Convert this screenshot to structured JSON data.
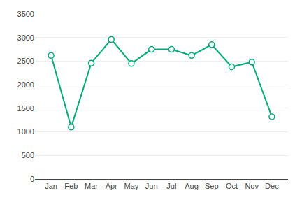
{
  "chart_data": {
    "type": "line",
    "categories": [
      "Jan",
      "Feb",
      "Mar",
      "Apr",
      "May",
      "Jun",
      "Jul",
      "Aug",
      "Sep",
      "Oct",
      "Nov",
      "Dec"
    ],
    "values": [
      2620,
      1100,
      2460,
      2960,
      2450,
      2750,
      2750,
      2620,
      2850,
      2380,
      2480,
      1320
    ],
    "color": "#00AA7A",
    "marker": "circle",
    "ylim": [
      0,
      3500
    ],
    "yticks": [
      0,
      500,
      1000,
      1500,
      2000,
      2500,
      3000,
      3500
    ],
    "grid": true
  }
}
